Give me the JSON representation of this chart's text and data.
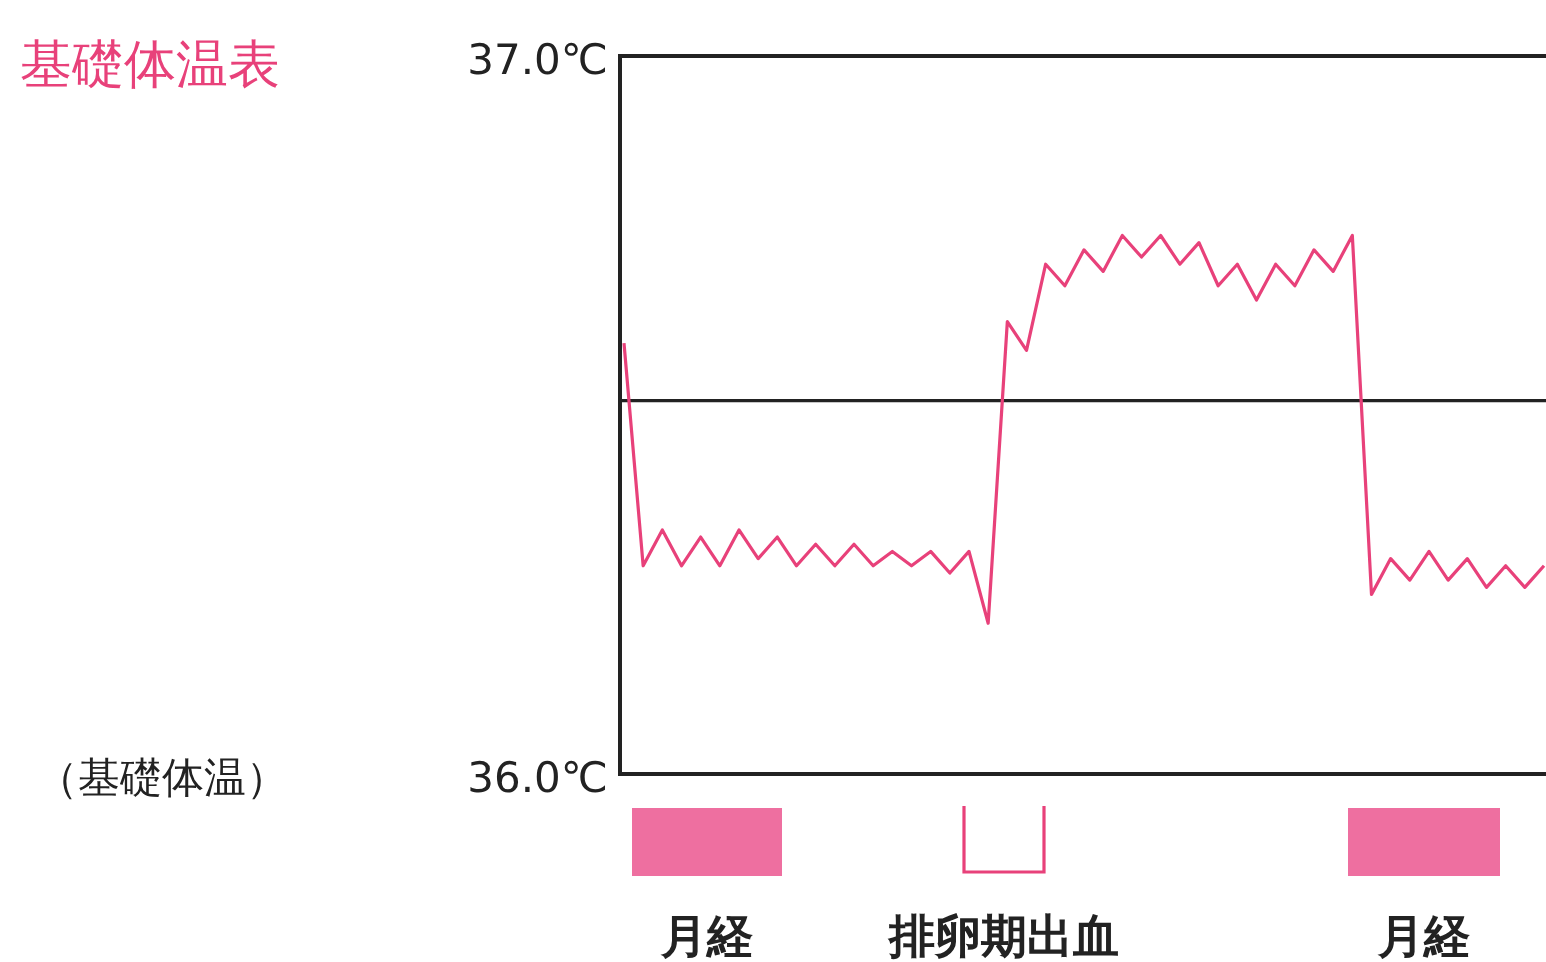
{
  "chart_data": {
    "type": "line",
    "title": "基礎体温表",
    "ylabel": "（基礎体温）",
    "categories": [
      null,
      null,
      null,
      null,
      null,
      null,
      null,
      null,
      null,
      null,
      null,
      null,
      null,
      null,
      null,
      null,
      null,
      null,
      null,
      null,
      null,
      null,
      null,
      null,
      null,
      null,
      null,
      null,
      null,
      null,
      null,
      null,
      null,
      null,
      null,
      null,
      null,
      null,
      null,
      null,
      null,
      null,
      null,
      null,
      null,
      null,
      null,
      null,
      null
    ],
    "series": [
      {
        "color": "#e8417a",
        "values": [
          36.6,
          36.29,
          36.34,
          36.29,
          36.33,
          36.29,
          36.34,
          36.3,
          36.33,
          36.29,
          36.32,
          36.29,
          36.32,
          36.29,
          36.31,
          36.29,
          36.31,
          36.28,
          36.31,
          36.21,
          36.63,
          36.59,
          36.71,
          36.68,
          36.73,
          36.7,
          36.75,
          36.72,
          36.75,
          36.71,
          36.74,
          36.68,
          36.71,
          36.66,
          36.71,
          36.68,
          36.73,
          36.7,
          36.75,
          36.25,
          36.3,
          36.27,
          36.31,
          36.27,
          36.3,
          36.26,
          36.29,
          36.26,
          36.29
        ]
      }
    ],
    "ylim": [
      36.0,
      37.0
    ],
    "yticks": [
      {
        "value": 36.0,
        "label": "36.0℃"
      },
      {
        "value": 37.0,
        "label": "37.0℃"
      }
    ],
    "ref_lines": [
      {
        "axis": "y",
        "value": 36.52,
        "color": "#222222"
      }
    ],
    "annotations": [
      "月経",
      "排卵期出血",
      "月経"
    ],
    "tick_labels": "y",
    "marker": "none",
    "line_style": "solid"
  }
}
